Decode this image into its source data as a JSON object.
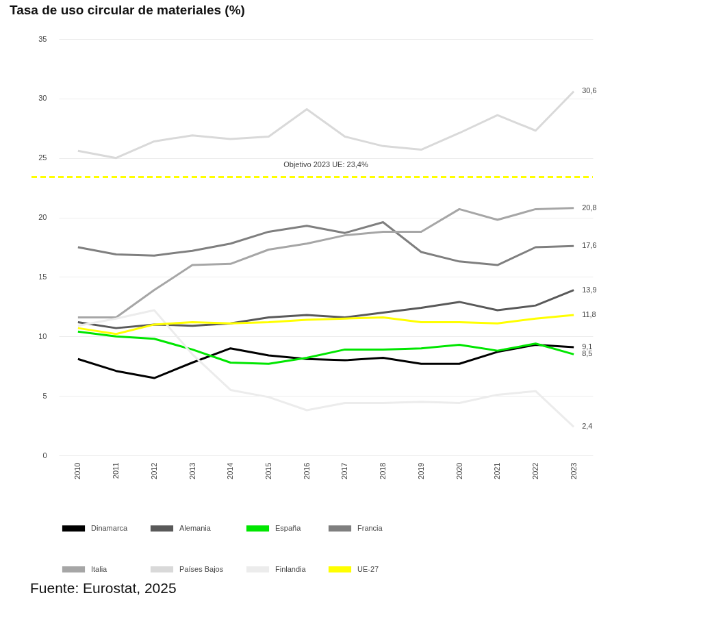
{
  "chart_data": {
    "type": "line",
    "title": "Tasa de uso circular de materiales (%)",
    "categories": [
      "2010",
      "2011",
      "2012",
      "2013",
      "2014",
      "2015",
      "2016",
      "2017",
      "2018",
      "2019",
      "2020",
      "2021",
      "2022",
      "2023"
    ],
    "series": [
      {
        "name": "Dinamarca",
        "color": "#000000",
        "values": [
          8.1,
          7.1,
          6.5,
          7.8,
          9.0,
          8.4,
          8.1,
          8.0,
          8.2,
          7.7,
          7.7,
          8.7,
          9.3,
          9.1
        ],
        "value_labels": [
          null,
          null,
          null,
          null,
          null,
          null,
          null,
          null,
          null,
          null,
          null,
          null,
          null,
          "9,1"
        ]
      },
      {
        "name": "Alemania",
        "color": "#595959",
        "values": [
          11.2,
          10.7,
          11.0,
          10.9,
          11.1,
          11.6,
          11.8,
          11.6,
          12.0,
          12.4,
          12.9,
          12.2,
          12.6,
          13.9
        ],
        "value_labels": [
          null,
          null,
          null,
          null,
          null,
          null,
          null,
          null,
          null,
          null,
          null,
          null,
          null,
          "13,9"
        ]
      },
      {
        "name": "España",
        "color": "#00e600",
        "values": [
          10.4,
          10.0,
          9.8,
          8.9,
          7.8,
          7.7,
          8.2,
          8.9,
          8.9,
          9.0,
          9.3,
          8.8,
          9.4,
          8.5
        ],
        "value_labels": [
          null,
          null,
          null,
          null,
          null,
          null,
          null,
          null,
          null,
          null,
          null,
          null,
          null,
          "8,5"
        ]
      },
      {
        "name": "Francia",
        "color": "#7f7f7f",
        "values": [
          17.5,
          16.9,
          16.8,
          17.2,
          17.8,
          18.8,
          19.3,
          18.7,
          19.6,
          17.1,
          16.3,
          16.0,
          17.5,
          17.6
        ],
        "value_labels": [
          null,
          null,
          null,
          null,
          null,
          null,
          null,
          null,
          null,
          null,
          null,
          null,
          null,
          "17,6"
        ]
      },
      {
        "name": "Italia",
        "color": "#a6a6a6",
        "values": [
          11.6,
          11.6,
          13.9,
          16.0,
          16.1,
          17.3,
          17.8,
          18.5,
          18.8,
          18.8,
          20.7,
          19.8,
          20.7,
          20.8
        ],
        "value_labels": [
          null,
          null,
          null,
          null,
          null,
          null,
          null,
          null,
          null,
          null,
          null,
          null,
          null,
          "20,8"
        ]
      },
      {
        "name": "Países Bajos",
        "color": "#d9d9d9",
        "values": [
          25.6,
          25.0,
          26.4,
          26.9,
          26.6,
          26.8,
          29.1,
          26.8,
          26.0,
          25.7,
          27.1,
          28.6,
          27.3,
          30.6
        ],
        "value_labels": [
          null,
          null,
          null,
          null,
          null,
          null,
          null,
          null,
          null,
          null,
          null,
          null,
          null,
          "30,6"
        ]
      },
      {
        "name": "Finlandia",
        "color": "#ececec",
        "values": [
          10.9,
          11.5,
          12.2,
          8.5,
          5.5,
          4.9,
          3.8,
          4.4,
          4.4,
          4.5,
          4.4,
          5.1,
          5.4,
          2.4
        ],
        "value_labels": [
          null,
          null,
          null,
          null,
          null,
          null,
          null,
          null,
          null,
          null,
          null,
          null,
          null,
          "2,4"
        ]
      },
      {
        "name": "UE-27",
        "color": "#ffff00",
        "values": [
          10.7,
          10.2,
          11.0,
          11.2,
          11.1,
          11.2,
          11.4,
          11.5,
          11.6,
          11.2,
          11.2,
          11.1,
          11.5,
          11.8
        ],
        "value_labels": [
          null,
          null,
          null,
          null,
          null,
          null,
          null,
          null,
          null,
          null,
          null,
          null,
          null,
          "11,8"
        ]
      }
    ],
    "ylim": [
      0,
      35
    ],
    "yticks": [
      0,
      5,
      10,
      15,
      20,
      25,
      30,
      35
    ],
    "grid": "y",
    "legend": "bottom",
    "ref_lines": [
      {
        "axis": "y",
        "value": 23.4,
        "label": "Objetivo 2023 UE: 23,4%",
        "color": "#ffff00",
        "line_style": "dashed"
      }
    ],
    "annotations": [
      "Fuente: Eurostat, 2025"
    ]
  }
}
